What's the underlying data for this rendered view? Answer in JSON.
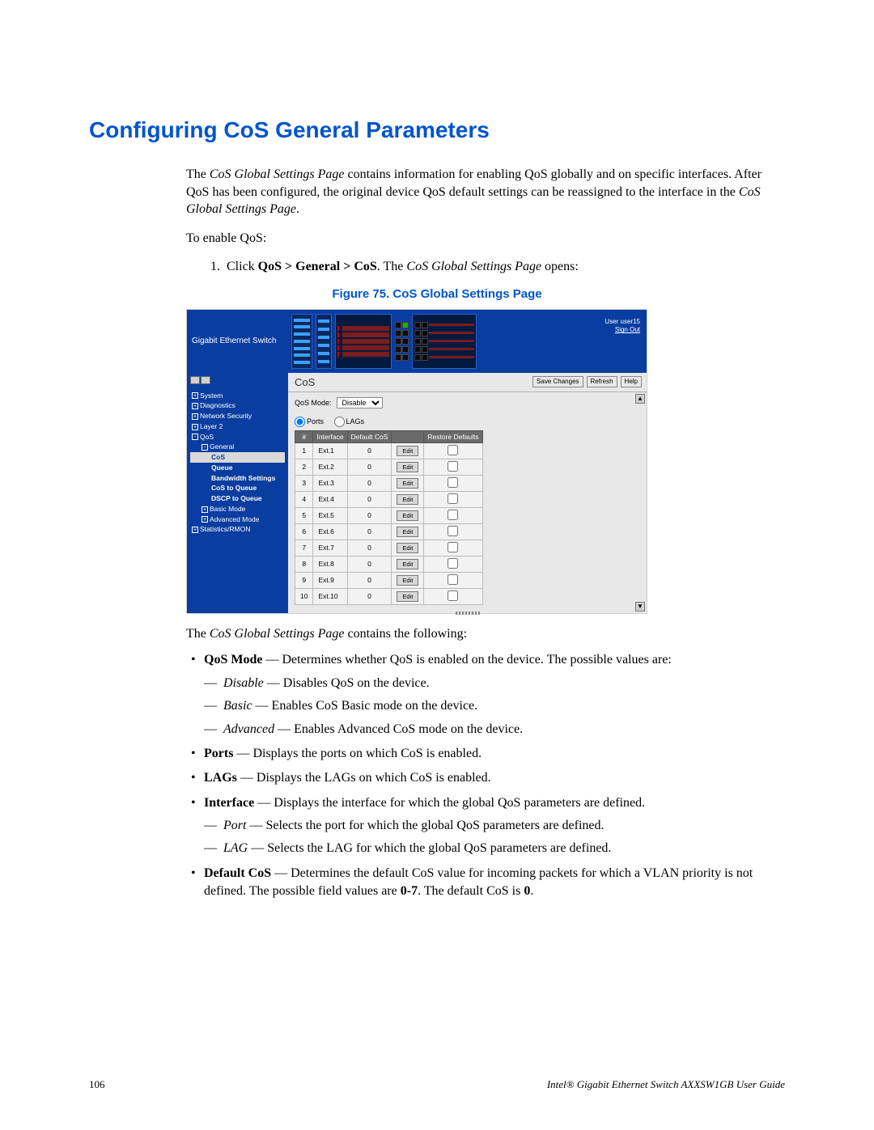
{
  "title": "Configuring CoS General Parameters",
  "intro_p1_a": "The ",
  "intro_p1_b": "CoS Global Settings Page",
  "intro_p1_c": " contains information for enabling QoS globally and on specific interfaces. After QoS has been configured, the original device QoS default settings can be reassigned to the interface in the ",
  "intro_p1_d": "CoS Global Settings Page",
  "intro_p1_e": ".",
  "to_enable": "To enable QoS:",
  "step1_a": "Click ",
  "step1_b": "QoS > General > CoS",
  "step1_c": ". The ",
  "step1_d": "CoS Global Settings Page",
  "step1_e": " opens:",
  "figure_caption": "Figure 75. CoS Global Settings Page",
  "screenshot": {
    "branding": "Gigabit Ethernet Switch",
    "user_label": "User user15",
    "signout": "Sign Out",
    "toolbar_title": "CoS",
    "btn_save": "Save Changes",
    "btn_refresh": "Refresh",
    "btn_help": "Help",
    "qos_mode_label": "QoS Mode:",
    "qos_mode_value": "Disable",
    "radio_ports": "Ports",
    "radio_lags": "LAGs",
    "sidebar": [
      {
        "lvl": 1,
        "exp": "+",
        "label": "System"
      },
      {
        "lvl": 1,
        "exp": "+",
        "label": "Diagnostics"
      },
      {
        "lvl": 1,
        "exp": "+",
        "label": "Network Security"
      },
      {
        "lvl": 1,
        "exp": "+",
        "label": "Layer 2"
      },
      {
        "lvl": 1,
        "exp": "-",
        "label": "QoS"
      },
      {
        "lvl": 2,
        "exp": "-",
        "label": "General"
      },
      {
        "lvl": 3,
        "label": "CoS",
        "sel": true,
        "bold": true
      },
      {
        "lvl": 3,
        "label": "Queue",
        "bold": true
      },
      {
        "lvl": 3,
        "label": "Bandwidth Settings",
        "bold": true
      },
      {
        "lvl": 3,
        "label": "CoS to Queue",
        "bold": true
      },
      {
        "lvl": 3,
        "label": "DSCP to Queue",
        "bold": true
      },
      {
        "lvl": 2,
        "exp": "+",
        "label": "Basic Mode"
      },
      {
        "lvl": 2,
        "exp": "+",
        "label": "Advanced Mode"
      },
      {
        "lvl": 1,
        "exp": "+",
        "label": "Statistics/RMON"
      }
    ],
    "table": {
      "headers": [
        "#",
        "Interface",
        "Default CoS",
        "",
        "Restore Defaults"
      ],
      "edit_label": "Edit",
      "rows": [
        {
          "n": "1",
          "if": "Ext.1",
          "cos": "0"
        },
        {
          "n": "2",
          "if": "Ext.2",
          "cos": "0"
        },
        {
          "n": "3",
          "if": "Ext.3",
          "cos": "0"
        },
        {
          "n": "4",
          "if": "Ext.4",
          "cos": "0"
        },
        {
          "n": "5",
          "if": "Ext.5",
          "cos": "0"
        },
        {
          "n": "6",
          "if": "Ext.6",
          "cos": "0"
        },
        {
          "n": "7",
          "if": "Ext.7",
          "cos": "0"
        },
        {
          "n": "8",
          "if": "Ext.8",
          "cos": "0"
        },
        {
          "n": "9",
          "if": "Ext.9",
          "cos": "0"
        },
        {
          "n": "10",
          "if": "Ext.10",
          "cos": "0"
        }
      ]
    }
  },
  "contains_intro_a": "The ",
  "contains_intro_b": "CoS Global Settings Page",
  "contains_intro_c": " contains the following:",
  "bullets": {
    "qos_mode_a": "QoS Mode",
    "qos_mode_b": " — Determines whether QoS is enabled on the device. The possible values are:",
    "disable_a": "Disable",
    "disable_b": " — Disables QoS on the device.",
    "basic_a": "Basic",
    "basic_b": " — Enables CoS Basic mode on the device.",
    "advanced_a": "Advanced",
    "advanced_b": " — Enables Advanced CoS mode on the device.",
    "ports_a": "Ports",
    "ports_b": " — Displays the ports on which CoS is enabled.",
    "lags_a": "LAGs",
    "lags_b": " — Displays the LAGs on which CoS is enabled.",
    "interface_a": "Interface",
    "interface_b": " — Displays the interface for which the global QoS parameters are defined.",
    "port_a": "Port",
    "port_b": " — Selects the port for which the global QoS parameters are defined.",
    "lag_a": "LAG",
    "lag_b": " — Selects the LAG for which the global QoS parameters are defined.",
    "default_a": "Default CoS",
    "default_b": " — Determines the default CoS value for incoming packets for which a VLAN priority is not defined. The possible field values are ",
    "default_c": "0-7",
    "default_d": ". The default CoS is ",
    "default_e": "0",
    "default_f": "."
  },
  "footer_page": "106",
  "footer_title": "Intel® Gigabit Ethernet Switch AXXSW1GB User Guide"
}
